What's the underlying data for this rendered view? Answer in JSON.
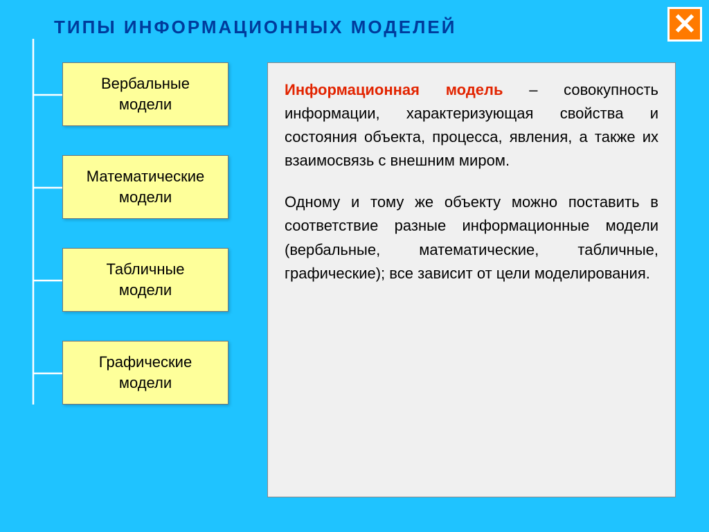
{
  "colors": {
    "background": "#1fc3ff",
    "title_color": "#003b9c",
    "close_bg": "#ff7a00",
    "box_bg": "#feff9a",
    "content_bg": "#f0f0f0",
    "highlight": "#e22400",
    "tree_line": "#ffffff"
  },
  "title": "ТИПЫ   ИНФОРМАЦИОННЫХ   МОДЕЛЕЙ",
  "models": [
    {
      "label": "Вербальные\nмодели"
    },
    {
      "label": "Математические\nмодели"
    },
    {
      "label": "Табличные\nмодели"
    },
    {
      "label": "Графические\nмодели"
    }
  ],
  "content": {
    "term": "Информационная  модель",
    "definition": " – совокупность информации, характеризующая свойства и состояния объекта, процесса, явления, а также их взаимосвязь с внешним миром.",
    "paragraph2": "Одному и тому же объекту можно поставить в соответствие разные  информационные модели (вербальные, математические, табличные, графические); все зависит от цели моделирования."
  }
}
